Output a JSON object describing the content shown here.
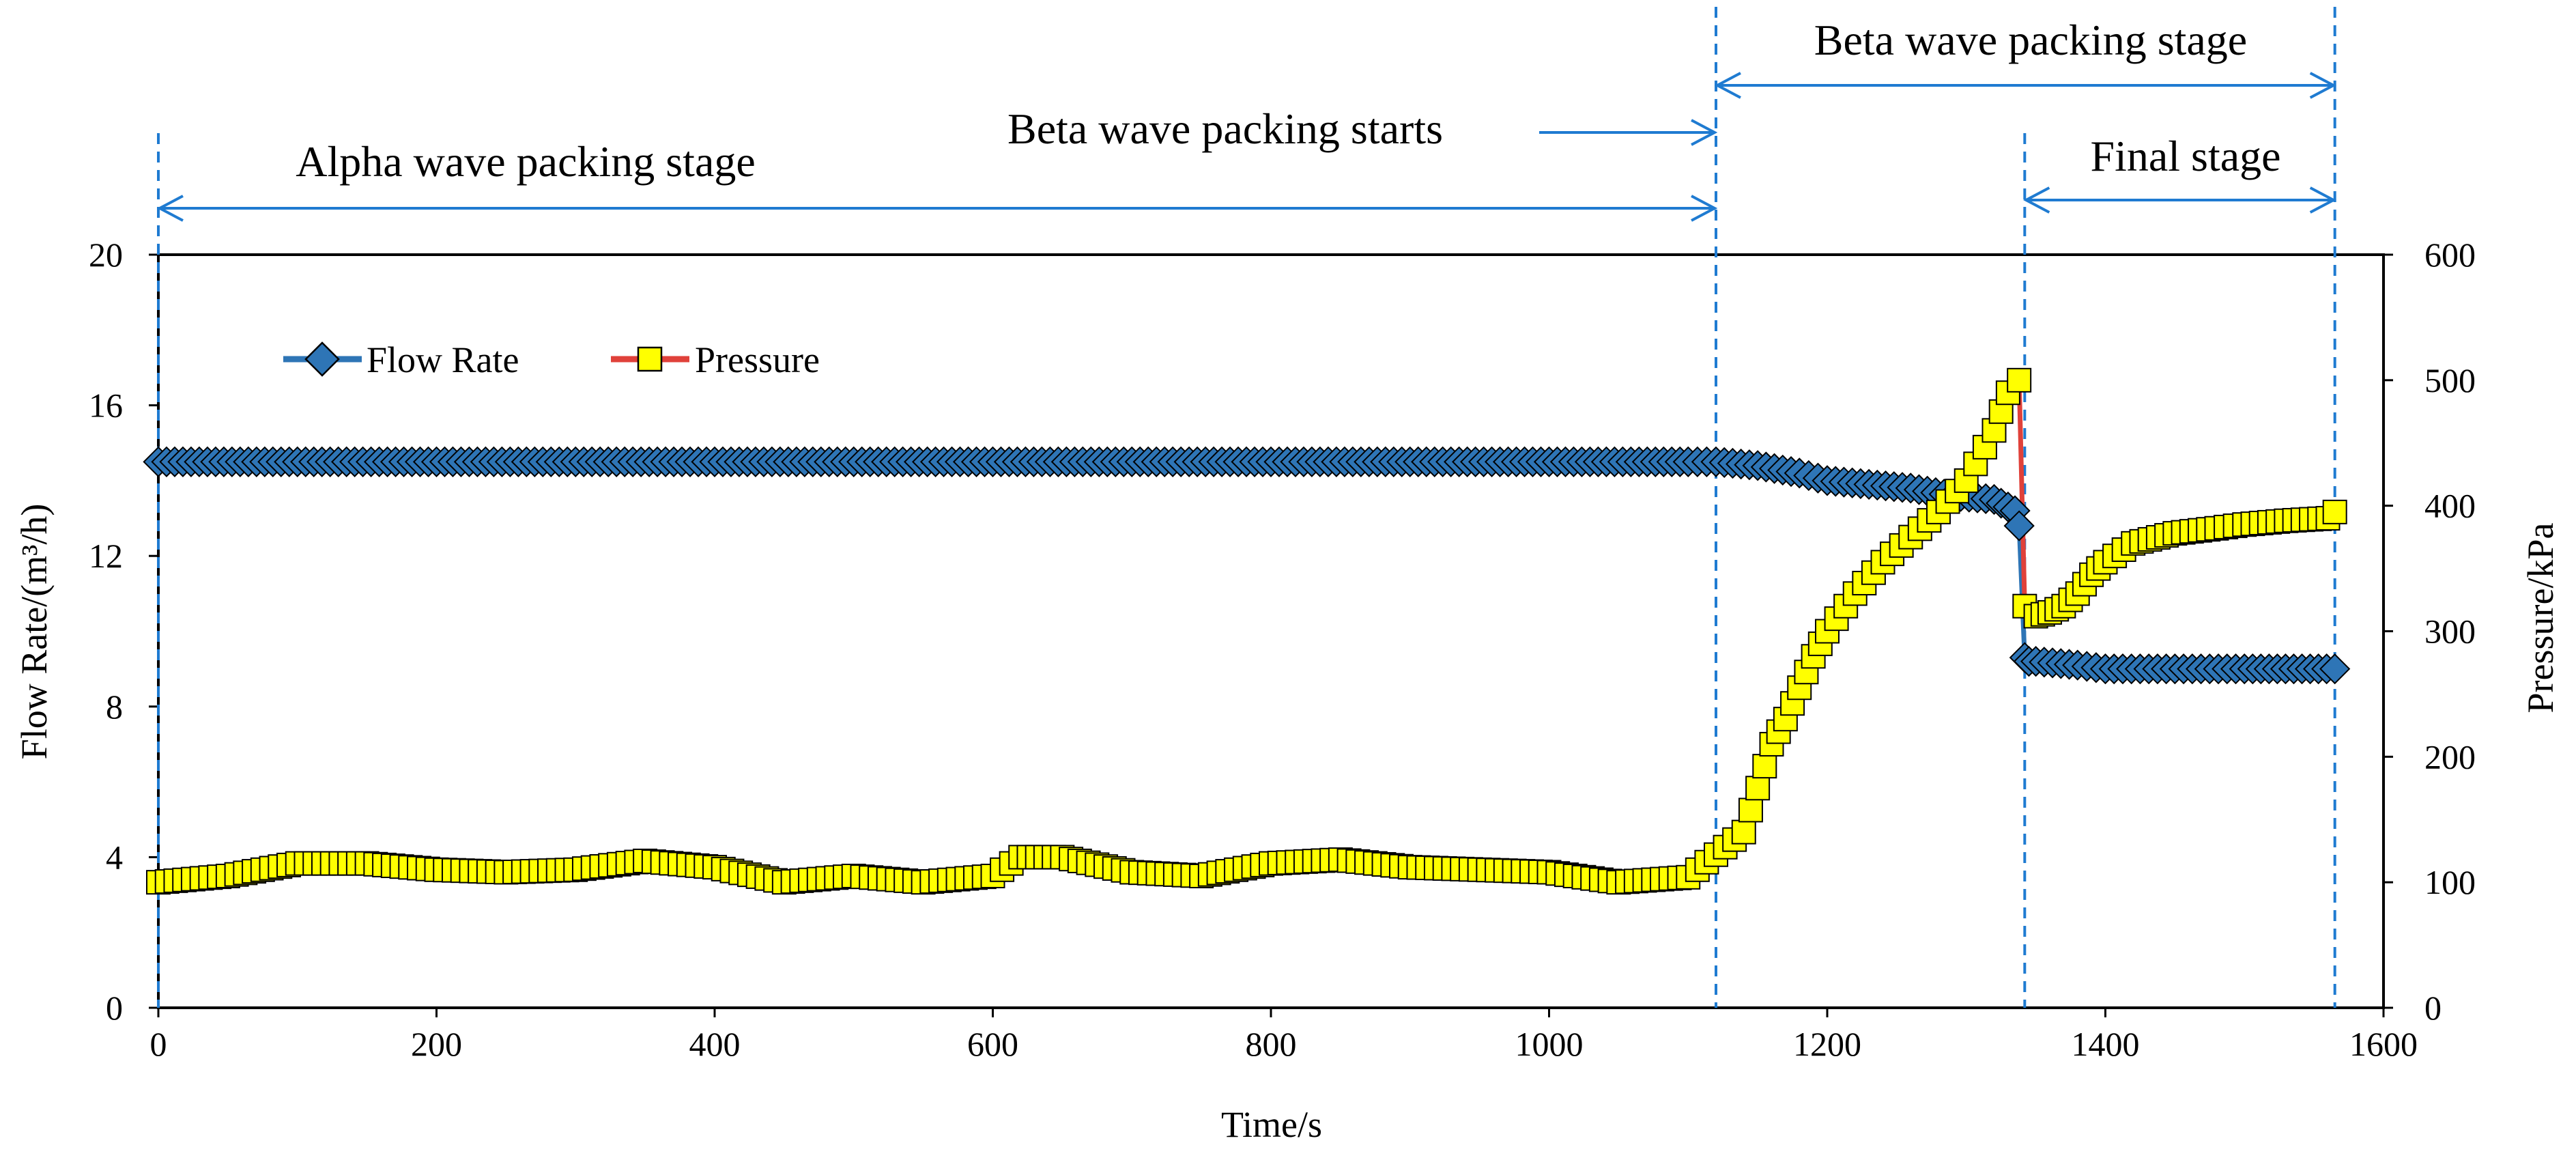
{
  "chart_data": {
    "type": "line",
    "title": "",
    "xlabel": "Time/s",
    "ylabel_left": "Flow Rate/(m³/h)",
    "ylabel_right": "Pressure/kPa",
    "xlim": [
      0,
      1600
    ],
    "ylim_left": [
      0,
      20
    ],
    "ylim_right": [
      0,
      600
    ],
    "x_ticks": [
      0,
      200,
      400,
      600,
      800,
      1000,
      1200,
      1400,
      1600
    ],
    "y_left_ticks": [
      0,
      4,
      8,
      12,
      16,
      20
    ],
    "y_right_ticks": [
      0,
      100,
      200,
      300,
      400,
      500,
      600
    ],
    "grid": false,
    "legend_position": "top-left",
    "legend": [
      "Flow Rate",
      "Pressure"
    ],
    "colors": {
      "flow_line": "#2e75b6",
      "flow_marker_fill": "#2e75b6",
      "pressure_line": "#e0413a",
      "pressure_marker_fill": "#ffff00",
      "marker_edge": "#000000",
      "annotation": "#1f7bd1",
      "background": "#ffffff"
    },
    "annotations": [
      {
        "text": "Alpha wave packing stage",
        "from_x": 0,
        "to_x": 1120
      },
      {
        "text": "Beta wave packing starts",
        "arrow_to_x": 1120
      },
      {
        "text": "Beta wave packing stage",
        "from_x": 1120,
        "to_x": 1565
      },
      {
        "text": "Final stage",
        "from_x": 1342,
        "to_x": 1565
      }
    ],
    "stage_boundaries_x": [
      0,
      1120,
      1342,
      1565
    ],
    "series": [
      {
        "name": "Flow Rate",
        "axis": "left",
        "x": [
          0,
          100,
          200,
          300,
          400,
          500,
          600,
          700,
          800,
          900,
          1000,
          1100,
          1120,
          1150,
          1180,
          1200,
          1230,
          1260,
          1290,
          1320,
          1335,
          1338,
          1342,
          1345,
          1350,
          1380,
          1400,
          1450,
          1500,
          1565
        ],
        "values": [
          14.5,
          14.5,
          14.5,
          14.5,
          14.5,
          14.5,
          14.5,
          14.5,
          14.5,
          14.5,
          14.5,
          14.5,
          14.5,
          14.4,
          14.2,
          14.0,
          13.9,
          13.8,
          13.6,
          13.5,
          13.2,
          12.8,
          9.3,
          9.2,
          9.2,
          9.1,
          9.0,
          9.0,
          9.0,
          9.0
        ]
      },
      {
        "name": "Pressure",
        "axis": "right",
        "x": [
          0,
          50,
          100,
          150,
          200,
          250,
          300,
          350,
          400,
          450,
          500,
          550,
          600,
          620,
          650,
          700,
          750,
          800,
          850,
          900,
          950,
          1000,
          1050,
          1100,
          1120,
          1140,
          1150,
          1160,
          1170,
          1180,
          1190,
          1200,
          1220,
          1240,
          1260,
          1280,
          1300,
          1320,
          1330,
          1338,
          1342,
          1350,
          1360,
          1370,
          1380,
          1390,
          1400,
          1420,
          1450,
          1480,
          1500,
          1530,
          1560,
          1565
        ],
        "values": [
          100,
          105,
          115,
          115,
          110,
          108,
          110,
          117,
          112,
          100,
          105,
          100,
          105,
          120,
          120,
          108,
          105,
          115,
          118,
          112,
          110,
          108,
          100,
          104,
          122,
          140,
          175,
          210,
          230,
          255,
          280,
          300,
          330,
          355,
          375,
          395,
          420,
          460,
          490,
          500,
          320,
          312,
          315,
          320,
          330,
          345,
          355,
          370,
          378,
          382,
          385,
          388,
          390,
          395
        ]
      }
    ]
  }
}
